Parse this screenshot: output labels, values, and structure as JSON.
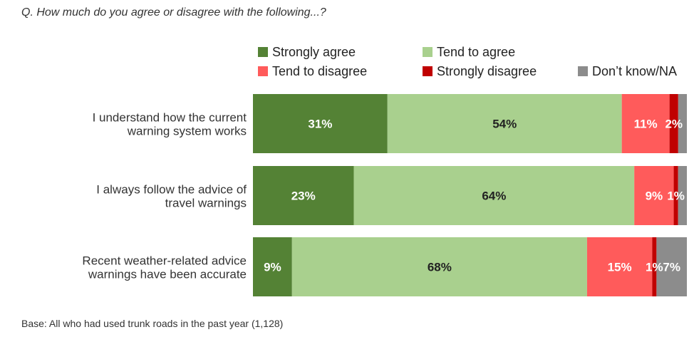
{
  "question": "Q.  How much do you agree or disagree with the following...?",
  "base": "Base: All who had used trunk roads in the past year (1,128)",
  "chart_data": {
    "type": "bar",
    "orientation": "horizontal",
    "stacked": true,
    "xlim": [
      0,
      100
    ],
    "categories": [
      [
        "I understand how the current",
        "warning system works"
      ],
      [
        "I always follow the advice of",
        "travel warnings"
      ],
      [
        "Recent weather-related advice",
        "warnings have been accurate"
      ]
    ],
    "series": [
      {
        "name": "Strongly agree",
        "color": "#548235",
        "label_color": "#ffffff",
        "values": [
          31,
          23,
          9
        ]
      },
      {
        "name": "Tend to agree",
        "color": "#a9d08e",
        "label_color": "#222222",
        "values": [
          54,
          64,
          68
        ]
      },
      {
        "name": "Tend to disagree",
        "color": "#ff5b5b",
        "label_color": "#ffffff",
        "values": [
          11,
          9,
          15
        ]
      },
      {
        "name": "Strongly disagree",
        "color": "#c00000",
        "label_color": "#ffffff",
        "values": [
          2,
          1,
          1
        ]
      },
      {
        "name": "Don’t know/NA",
        "color": "#8c8c8c",
        "label_color": "#ffffff",
        "values": [
          2,
          2,
          7
        ]
      }
    ],
    "data_labels": [
      [
        "31%",
        "54%",
        "11%",
        "2%",
        ""
      ],
      [
        "23%",
        "64%",
        "9%",
        "1%",
        ""
      ],
      [
        "9%",
        "68%",
        "15%",
        "1%",
        "7%"
      ]
    ],
    "legend_position": "top",
    "grid": false
  }
}
